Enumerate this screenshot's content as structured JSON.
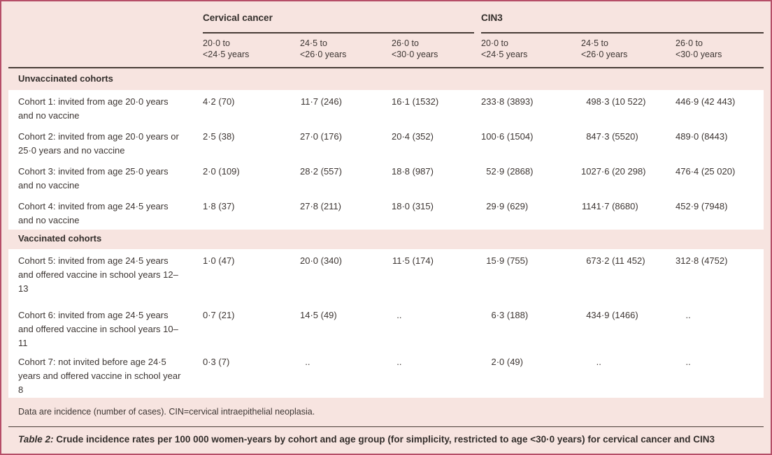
{
  "table": {
    "group_headers": {
      "cervical": "Cervical cancer",
      "cin3": "CIN3"
    },
    "age_columns": [
      {
        "line1": "20·0 to",
        "line2": "<24·5 years"
      },
      {
        "line1": "24·5 to",
        "line2": "<26·0 years"
      },
      {
        "line1": "26·0 to",
        "line2": "<30·0 years"
      },
      {
        "line1": "20·0 to",
        "line2": "<24·5 years"
      },
      {
        "line1": "24·5 to",
        "line2": "<26·0 years"
      },
      {
        "line1": "26·0 to",
        "line2": "<30·0 years"
      }
    ],
    "sections": [
      {
        "title": "Unvaccinated cohorts",
        "rows": [
          {
            "label": "Cohort 1: invited from age 20·0 years and no vaccine",
            "values": [
              "4·2 (70)",
              "11·7 (246)",
              "16·1 (1532)",
              "233·8 (3893)",
              "498·3 (10 522)",
              "446·9 (42 443)"
            ]
          },
          {
            "label": "Cohort 2: invited from age 20·0 years or 25·0 years and no vaccine",
            "values": [
              "2·5 (38)",
              "27·0 (176)",
              "20·4 (352)",
              "100·6 (1504)",
              "847·3 (5520)",
              "489·0 (8443)"
            ]
          },
          {
            "label": "Cohort 3: invited from age 25·0 years and no vaccine",
            "values": [
              "2·0 (109)",
              "28·2 (557)",
              "18·8 (987)",
              "52·9 (2868)",
              "1027·6 (20 298)",
              "476·4 (25 020)"
            ]
          },
          {
            "label": "Cohort 4: invited from age 24·5 years and no vaccine",
            "values": [
              "1·8 (37)",
              "27·8 (211)",
              "18·0 (315)",
              "29·9 (629)",
              "1141·7 (8680)",
              "452·9 (7948)"
            ]
          }
        ]
      },
      {
        "title": "Vaccinated cohorts",
        "rows": [
          {
            "label": "Cohort 5: invited from age 24·5 years and offered vaccine in school years 12–13",
            "values": [
              "1·0 (47)",
              "20·0 (340)",
              "11·5 (174)",
              "15·9 (755)",
              "673·2 (11 452)",
              "312·8 (4752)"
            ]
          },
          {
            "label": "Cohort 6: invited from age 24·5 years and offered vaccine in school years 10–11",
            "values": [
              "0·7 (21)",
              "14·5 (49)",
              "..",
              "6·3 (188)",
              "434·9 (1466)",
              ".."
            ]
          },
          {
            "label": "Cohort 7: not invited before age 24·5 years and offered vaccine in school year 8",
            "values": [
              "0·3 (7)",
              "..",
              "..",
              "2·0 (49)",
              "..",
              ".."
            ]
          }
        ]
      }
    ],
    "footnote": "Data are incidence (number of cases). CIN=cervical intraepithelial neoplasia.",
    "caption_label": "Table 2:",
    "caption_text": " Crude incidence rates per 100 000 women-years by cohort and age group (for simplicity, restricted to age <30·0 years) for cervical cancer and CIN3"
  },
  "colors": {
    "background_pink": "#f7e4e0",
    "row_white": "#ffffff",
    "frame_border": "#b64e68",
    "rule_dark": "#473c36",
    "text": "#3d3633"
  }
}
